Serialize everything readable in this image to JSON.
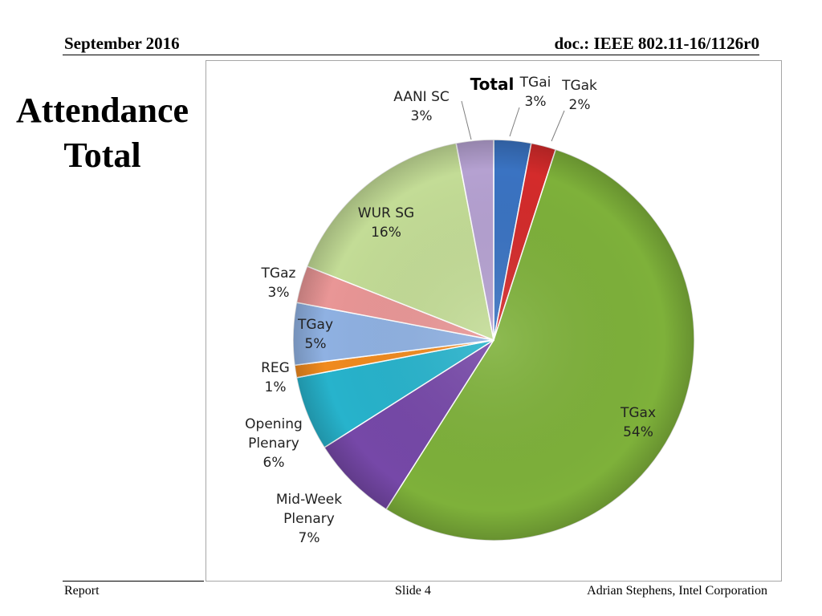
{
  "header": {
    "date": "September 2016",
    "doc": "doc.: IEEE 802.11-16/1126r0"
  },
  "slide": {
    "title_line1": "Attendance",
    "title_line2": "Total"
  },
  "footer": {
    "left": "Report",
    "center": "Slide 4",
    "right": "Adrian Stephens, Intel Corporation"
  },
  "chart_data": {
    "type": "pie",
    "title": "Total",
    "label_format": "category-and-percent",
    "start_angle_deg": 0,
    "direction": "clockwise",
    "slices": [
      {
        "name": "TGai",
        "value": 3,
        "label": "3%",
        "color": "#3a73c2"
      },
      {
        "name": "TGak",
        "value": 2,
        "label": "2%",
        "color": "#d42b2b"
      },
      {
        "name": "TGax",
        "value": 54,
        "label": "54%",
        "color": "#7eb13a"
      },
      {
        "name": "Mid-Week Plenary",
        "value": 7,
        "label": "7%",
        "color": "#7648a8"
      },
      {
        "name": "Opening Plenary",
        "value": 6,
        "label": "6%",
        "color": "#27b3cc"
      },
      {
        "name": "REG",
        "value": 1,
        "label": "1%",
        "color": "#f08a1e"
      },
      {
        "name": "TGay",
        "value": 5,
        "label": "5%",
        "color": "#8fb1e2"
      },
      {
        "name": "TGaz",
        "value": 3,
        "label": "3%",
        "color": "#e99696"
      },
      {
        "name": "WUR SG",
        "value": 16,
        "label": "16%",
        "color": "#c3dc96"
      },
      {
        "name": "AANI SC",
        "value": 3,
        "label": "3%",
        "color": "#b5a1d1"
      }
    ]
  }
}
